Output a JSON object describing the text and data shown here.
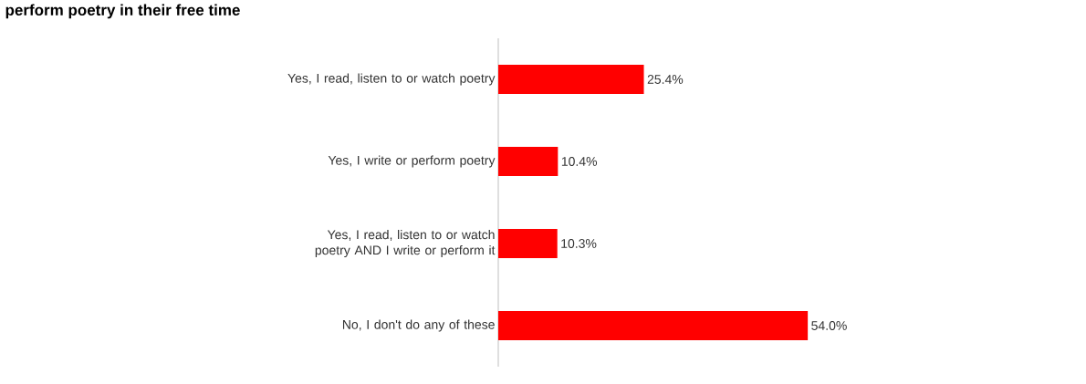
{
  "chart_data": {
    "type": "bar",
    "orientation": "horizontal",
    "title": "perform poetry in their free time",
    "categories": [
      "Yes, I read, listen to or watch poetry",
      "Yes, I write or perform poetry",
      "Yes, I read, listen to or watch poetry AND I write or perform it",
      "No, I don't do any of these"
    ],
    "values": [
      25.4,
      10.4,
      10.3,
      54.0
    ],
    "color": "#ff0000",
    "value_labels": [
      "25.4%",
      "10.4%",
      "10.3%",
      "54.0%"
    ]
  }
}
